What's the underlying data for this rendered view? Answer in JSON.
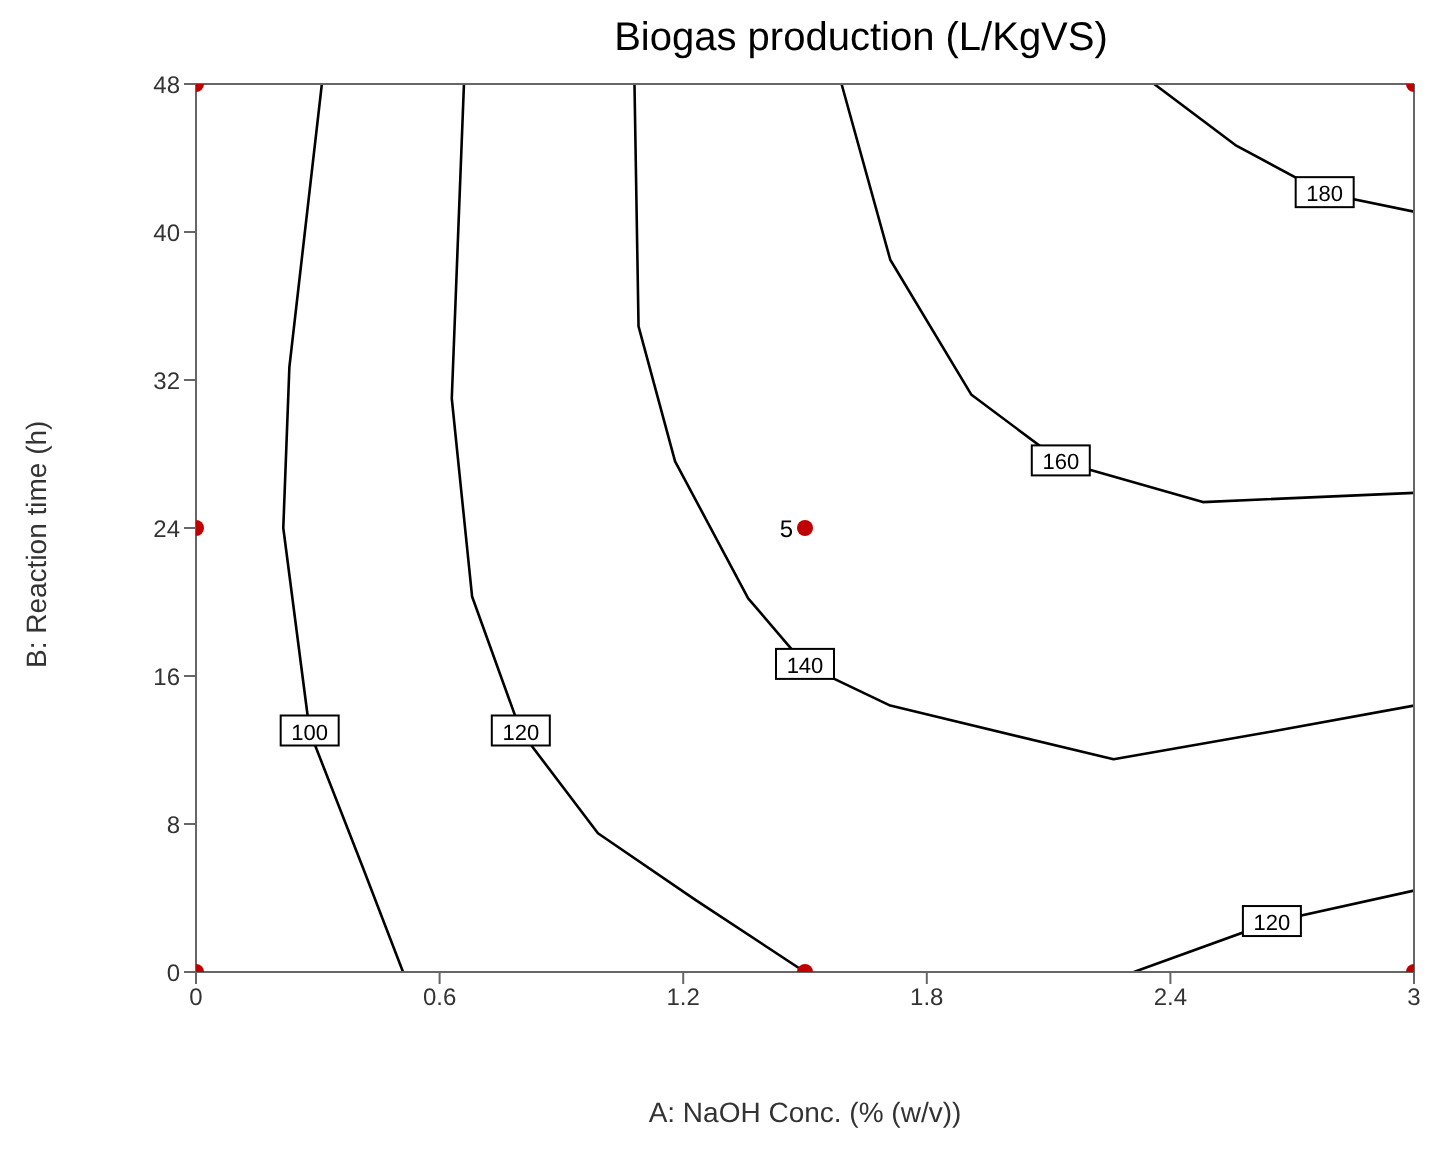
{
  "chart_data": {
    "type": "line",
    "title": "Biogas production (L/KgVS)",
    "xlabel": "A: NaOH Conc. (% (w/v))",
    "ylabel": "B: Reaction time (h)",
    "xlim": [
      0,
      3
    ],
    "ylim": [
      0,
      48
    ],
    "xticks": [
      0,
      0.6,
      1.2,
      1.8,
      2.4,
      3
    ],
    "yticks": [
      0,
      8,
      16,
      24,
      32,
      40,
      48
    ],
    "grid": false,
    "legend": false,
    "marker": "none",
    "line_style": "solid",
    "series": [
      {
        "name": "100",
        "color": "#000000",
        "x": [
          0.31,
          0.23,
          0.215,
          0.28,
          0.41,
          0.51
        ],
        "values": [
          48,
          32.7,
          24,
          13,
          5.7,
          0
        ]
      },
      {
        "name": "120",
        "color": "#000000",
        "x": [
          0.66,
          0.63,
          0.68,
          0.8,
          0.99,
          1.23,
          1.5,
          1.9,
          2.31,
          2.65,
          3
        ],
        "values": [
          48,
          31,
          20.3,
          13,
          7.5,
          3.9,
          0,
          null,
          0,
          2.7,
          4.4
        ]
      },
      {
        "name": "140",
        "color": "#000000",
        "x": [
          1.08,
          1.09,
          1.18,
          1.36,
          1.5,
          1.71,
          2.26,
          2.65,
          3
        ],
        "values": [
          48,
          34.9,
          27.6,
          20.2,
          16.6,
          14.4,
          11.5,
          13,
          14.4
        ]
      },
      {
        "name": "160",
        "color": "#000000",
        "x": [
          1.59,
          1.71,
          1.91,
          2.13,
          2.48,
          3
        ],
        "values": [
          48,
          38.5,
          31.2,
          27.6,
          25.4,
          25.9
        ]
      },
      {
        "name": "180",
        "color": "#000000",
        "x": [
          2.36,
          2.56,
          2.78,
          3
        ],
        "values": [
          48,
          44.7,
          42.1,
          41.1
        ]
      },
      {
        "type": "scatter",
        "color": "#c00000",
        "marker": "circle",
        "x": [
          0,
          3,
          0,
          1.5,
          0,
          1.5,
          3
        ],
        "values": [
          48,
          48,
          24,
          24,
          0,
          0,
          0
        ]
      }
    ],
    "annotations": [
      {
        "text": "5",
        "x": 1.5,
        "y": 24
      }
    ]
  }
}
